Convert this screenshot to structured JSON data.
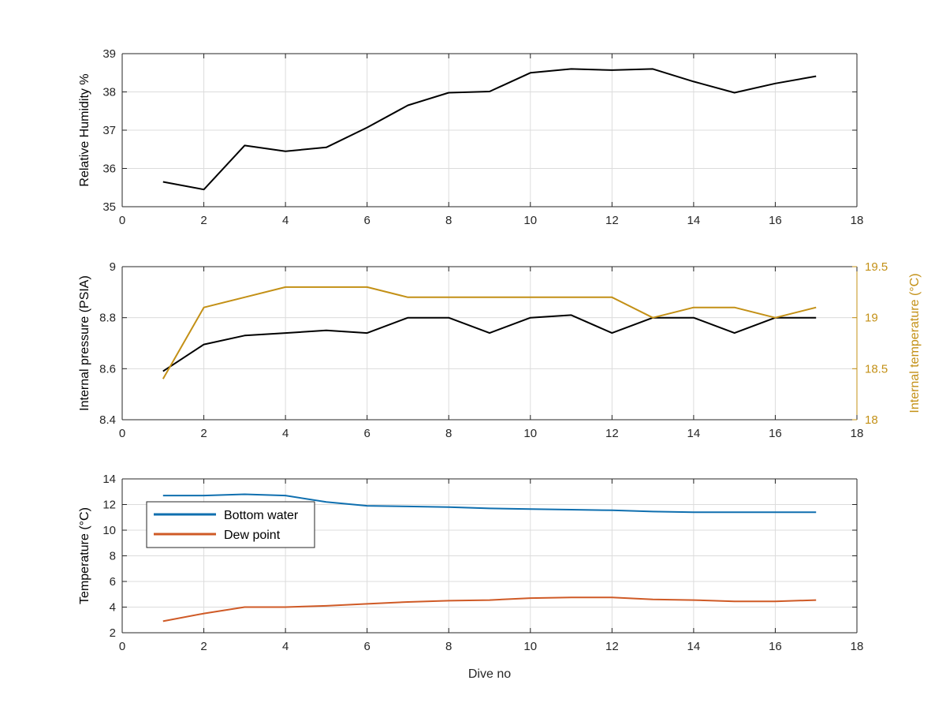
{
  "chart_data": [
    {
      "type": "line",
      "ylabel": "Relative Humidity %",
      "xlabel": "",
      "xlim": [
        0,
        18
      ],
      "ylim": [
        35,
        39
      ],
      "xticks": [
        0,
        2,
        4,
        6,
        8,
        10,
        12,
        14,
        16,
        18
      ],
      "yticks": [
        35,
        36,
        37,
        38,
        39
      ],
      "grid": true,
      "x": [
        1,
        2,
        3,
        4,
        5,
        6,
        7,
        8,
        9,
        10,
        11,
        12,
        13,
        14,
        15,
        16,
        17
      ],
      "series": [
        {
          "color": "#000000",
          "values": [
            35.65,
            35.45,
            36.6,
            36.45,
            36.55,
            37.07,
            37.65,
            37.98,
            38.01,
            38.5,
            38.6,
            38.57,
            38.6,
            38.27,
            37.98,
            38.22,
            38.41
          ]
        }
      ]
    },
    {
      "type": "line",
      "ylabel": "Internal pressure (PSIA)",
      "ylabel_right": "Internal temperature (°C)",
      "xlabel": "",
      "xlim": [
        0,
        18
      ],
      "ylim": [
        8.4,
        9
      ],
      "ylim_right": [
        18,
        19.5
      ],
      "xticks": [
        0,
        2,
        4,
        6,
        8,
        10,
        12,
        14,
        16,
        18
      ],
      "yticks": [
        8.4,
        8.6,
        8.8,
        9
      ],
      "yticks_right": [
        18,
        18.5,
        19,
        19.5
      ],
      "grid": true,
      "x": [
        1,
        2,
        3,
        4,
        5,
        6,
        7,
        8,
        9,
        10,
        11,
        12,
        13,
        14,
        15,
        16,
        17
      ],
      "series": [
        {
          "axis": "left",
          "color": "#000000",
          "values": [
            8.59,
            8.695,
            8.73,
            8.74,
            8.75,
            8.74,
            8.8,
            8.8,
            8.74,
            8.8,
            8.81,
            8.74,
            8.8,
            8.8,
            8.74,
            8.8,
            8.8
          ]
        },
        {
          "axis": "right",
          "color": "#c39016",
          "values": [
            18.4,
            19.1,
            19.2,
            19.3,
            19.3,
            19.3,
            19.2,
            19.2,
            19.2,
            19.2,
            19.2,
            19.2,
            19.0,
            19.1,
            19.1,
            19.0,
            19.1
          ]
        }
      ]
    },
    {
      "type": "line",
      "ylabel": "Temperature (°C)",
      "xlabel": "Dive no",
      "xlim": [
        0,
        18
      ],
      "ylim": [
        2,
        14
      ],
      "xticks": [
        0,
        2,
        4,
        6,
        8,
        10,
        12,
        14,
        16,
        18
      ],
      "yticks": [
        2,
        4,
        6,
        8,
        10,
        12,
        14
      ],
      "grid": true,
      "legend": "top-left",
      "x": [
        1,
        2,
        3,
        4,
        5,
        6,
        7,
        8,
        9,
        10,
        11,
        12,
        13,
        14,
        15,
        16,
        17
      ],
      "series": [
        {
          "name": "Bottom water",
          "color": "#0f6faf",
          "values": [
            12.7,
            12.7,
            12.8,
            12.7,
            12.2,
            11.9,
            11.85,
            11.8,
            11.7,
            11.65,
            11.6,
            11.55,
            11.45,
            11.4,
            11.4,
            11.4,
            11.4
          ]
        },
        {
          "name": "Dew point",
          "color": "#cf5a26",
          "values": [
            2.9,
            3.5,
            4.0,
            4.0,
            4.1,
            4.25,
            4.4,
            4.5,
            4.55,
            4.7,
            4.75,
            4.75,
            4.6,
            4.55,
            4.45,
            4.45,
            4.55
          ]
        }
      ]
    }
  ]
}
